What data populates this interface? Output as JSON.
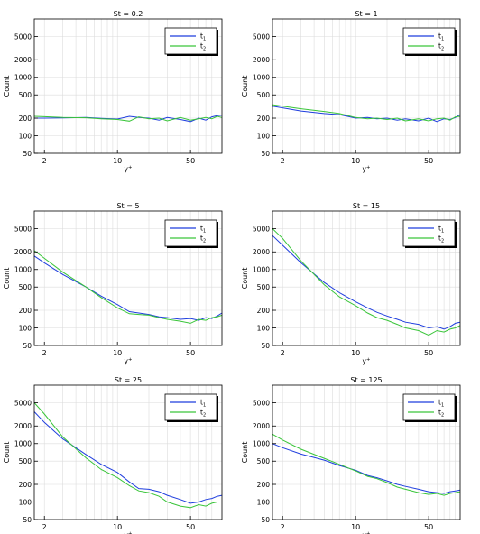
{
  "chart_data": [
    {
      "type": "line",
      "title": "St = 0.2",
      "xlabel": "y",
      "xlabel_sup": "+",
      "ylabel": "Count",
      "xscale": "log",
      "yscale": "log",
      "xlim": [
        1.6,
        100
      ],
      "ylim": [
        50,
        10000
      ],
      "xticks": [
        2,
        10,
        50
      ],
      "yticks": [
        50,
        100,
        200,
        500,
        1000,
        2000,
        5000
      ],
      "grid": true,
      "legend_position": "top-right",
      "series": [
        {
          "name": "t",
          "sub": "1",
          "color": "#1f3ede",
          "x": [
            1.6,
            2,
            3,
            5,
            7,
            10,
            13,
            16,
            20,
            25,
            30,
            40,
            50,
            60,
            70,
            80,
            90,
            100
          ],
          "y": [
            200,
            200,
            202,
            205,
            198,
            193,
            215,
            205,
            200,
            185,
            205,
            190,
            175,
            200,
            185,
            210,
            220,
            225
          ]
        },
        {
          "name": "t",
          "sub": "2",
          "color": "#3ac53a",
          "x": [
            1.6,
            2,
            3,
            5,
            7,
            10,
            13,
            16,
            20,
            25,
            30,
            40,
            50,
            60,
            70,
            80,
            90,
            100
          ],
          "y": [
            215,
            212,
            205,
            203,
            195,
            190,
            178,
            210,
            195,
            200,
            180,
            205,
            185,
            195,
            205,
            195,
            215,
            205
          ]
        }
      ]
    },
    {
      "type": "line",
      "title": "St = 1",
      "xlabel": "y",
      "xlabel_sup": "+",
      "ylabel": "Count",
      "xscale": "log",
      "yscale": "log",
      "xlim": [
        1.6,
        100
      ],
      "ylim": [
        50,
        10000
      ],
      "xticks": [
        2,
        10,
        50
      ],
      "yticks": [
        50,
        100,
        200,
        500,
        1000,
        2000,
        5000
      ],
      "grid": true,
      "legend_position": "top-right",
      "series": [
        {
          "name": "t",
          "sub": "1",
          "color": "#1f3ede",
          "x": [
            1.6,
            2,
            3,
            5,
            7,
            10,
            13,
            16,
            20,
            25,
            30,
            40,
            50,
            60,
            70,
            80,
            90,
            100
          ],
          "y": [
            320,
            300,
            265,
            240,
            230,
            200,
            205,
            195,
            200,
            185,
            195,
            180,
            200,
            175,
            195,
            190,
            205,
            230
          ]
        },
        {
          "name": "t",
          "sub": "2",
          "color": "#3ac53a",
          "x": [
            1.6,
            2,
            3,
            5,
            7,
            10,
            13,
            16,
            20,
            25,
            30,
            40,
            50,
            60,
            70,
            80,
            90,
            100
          ],
          "y": [
            340,
            320,
            290,
            260,
            240,
            205,
            195,
            200,
            190,
            200,
            180,
            195,
            180,
            195,
            200,
            185,
            210,
            215
          ]
        }
      ]
    },
    {
      "type": "line",
      "title": "St = 5",
      "xlabel": "y",
      "xlabel_sup": "+",
      "ylabel": "Count",
      "xscale": "log",
      "yscale": "log",
      "xlim": [
        1.6,
        100
      ],
      "ylim": [
        50,
        10000
      ],
      "xticks": [
        2,
        10,
        50
      ],
      "yticks": [
        50,
        100,
        200,
        500,
        1000,
        2000,
        5000
      ],
      "grid": true,
      "legend_position": "top-right",
      "series": [
        {
          "name": "t",
          "sub": "1",
          "color": "#1f3ede",
          "x": [
            1.6,
            2,
            3,
            5,
            7,
            10,
            13,
            16,
            20,
            25,
            30,
            40,
            50,
            60,
            70,
            80,
            90,
            100
          ],
          "y": [
            1700,
            1300,
            820,
            500,
            350,
            250,
            190,
            180,
            170,
            155,
            150,
            140,
            145,
            135,
            150,
            145,
            160,
            180
          ]
        },
        {
          "name": "t",
          "sub": "2",
          "color": "#3ac53a",
          "x": [
            1.6,
            2,
            3,
            5,
            7,
            10,
            13,
            16,
            20,
            25,
            30,
            40,
            50,
            60,
            70,
            80,
            90,
            100
          ],
          "y": [
            2100,
            1550,
            900,
            500,
            330,
            220,
            175,
            170,
            165,
            150,
            140,
            130,
            120,
            140,
            135,
            150,
            155,
            165
          ]
        }
      ]
    },
    {
      "type": "line",
      "title": "St = 15",
      "xlabel": "y",
      "xlabel_sup": "+",
      "ylabel": "Count",
      "xscale": "log",
      "yscale": "log",
      "xlim": [
        1.6,
        100
      ],
      "ylim": [
        50,
        10000
      ],
      "xticks": [
        2,
        10,
        50
      ],
      "yticks": [
        50,
        100,
        200,
        500,
        1000,
        2000,
        5000
      ],
      "grid": true,
      "legend_position": "top-right",
      "series": [
        {
          "name": "t",
          "sub": "1",
          "color": "#1f3ede",
          "x": [
            1.6,
            2,
            3,
            5,
            7,
            10,
            13,
            16,
            20,
            25,
            30,
            40,
            50,
            60,
            70,
            80,
            90,
            100
          ],
          "y": [
            3800,
            2600,
            1300,
            600,
            400,
            280,
            220,
            185,
            160,
            140,
            125,
            115,
            100,
            105,
            95,
            105,
            120,
            125
          ]
        },
        {
          "name": "t",
          "sub": "2",
          "color": "#3ac53a",
          "x": [
            1.6,
            2,
            3,
            5,
            7,
            10,
            13,
            16,
            20,
            25,
            30,
            40,
            50,
            60,
            70,
            80,
            90,
            100
          ],
          "y": [
            5000,
            3400,
            1400,
            550,
            340,
            240,
            180,
            150,
            135,
            115,
            100,
            90,
            75,
            90,
            85,
            95,
            100,
            110
          ]
        }
      ]
    },
    {
      "type": "line",
      "title": "St = 25",
      "xlabel": "y",
      "xlabel_sup": "+",
      "ylabel": "Count",
      "xscale": "log",
      "yscale": "log",
      "xlim": [
        1.6,
        100
      ],
      "ylim": [
        50,
        10000
      ],
      "xticks": [
        2,
        10,
        50
      ],
      "yticks": [
        50,
        100,
        200,
        500,
        1000,
        2000,
        5000
      ],
      "grid": true,
      "legend_position": "top-right",
      "series": [
        {
          "name": "t",
          "sub": "1",
          "color": "#1f3ede",
          "x": [
            1.6,
            2,
            3,
            5,
            7,
            10,
            13,
            16,
            20,
            25,
            30,
            40,
            50,
            60,
            70,
            80,
            90,
            100
          ],
          "y": [
            3500,
            2300,
            1200,
            650,
            440,
            320,
            220,
            170,
            165,
            150,
            130,
            110,
            95,
            100,
            110,
            115,
            125,
            130
          ]
        },
        {
          "name": "t",
          "sub": "2",
          "color": "#3ac53a",
          "x": [
            1.6,
            2,
            3,
            5,
            7,
            10,
            13,
            16,
            20,
            25,
            30,
            40,
            50,
            60,
            70,
            80,
            90,
            100
          ],
          "y": [
            5000,
            3200,
            1300,
            570,
            360,
            260,
            190,
            155,
            145,
            125,
            100,
            85,
            80,
            90,
            85,
            95,
            100,
            100
          ]
        }
      ]
    },
    {
      "type": "line",
      "title": "St = 125",
      "xlabel": "y",
      "xlabel_sup": "+",
      "ylabel": "Count",
      "xscale": "log",
      "yscale": "log",
      "xlim": [
        1.6,
        100
      ],
      "ylim": [
        50,
        10000
      ],
      "xticks": [
        2,
        10,
        50
      ],
      "yticks": [
        50,
        100,
        200,
        500,
        1000,
        2000,
        5000
      ],
      "grid": true,
      "legend_position": "top-right",
      "series": [
        {
          "name": "t",
          "sub": "1",
          "color": "#1f3ede",
          "x": [
            1.6,
            2,
            3,
            5,
            7,
            10,
            13,
            16,
            20,
            25,
            30,
            40,
            50,
            60,
            70,
            80,
            90,
            100
          ],
          "y": [
            1000,
            850,
            660,
            520,
            420,
            350,
            285,
            260,
            230,
            200,
            185,
            165,
            150,
            145,
            140,
            150,
            155,
            160
          ]
        },
        {
          "name": "t",
          "sub": "2",
          "color": "#3ac53a",
          "x": [
            1.6,
            2,
            3,
            5,
            7,
            10,
            13,
            16,
            20,
            25,
            30,
            40,
            50,
            60,
            70,
            80,
            90,
            100
          ],
          "y": [
            1450,
            1150,
            800,
            560,
            440,
            340,
            275,
            250,
            215,
            180,
            165,
            145,
            135,
            140,
            130,
            140,
            145,
            150
          ]
        }
      ]
    }
  ]
}
